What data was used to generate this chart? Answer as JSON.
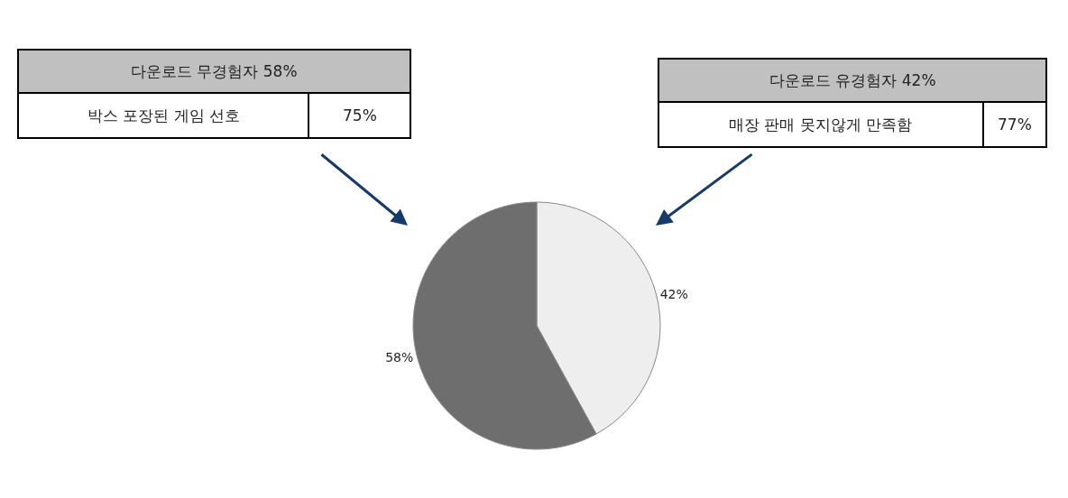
{
  "chart_data": {
    "type": "pie",
    "categories": [
      null,
      null
    ],
    "values": [
      42,
      58
    ],
    "colors": [
      "#eeeeee",
      "#6e6e6e"
    ],
    "value_labels": [
      "42%",
      "58%"
    ],
    "annotations": [
      "다운로드 무경험자 58%",
      "박스 포장된 게임 선호",
      "75%",
      "다운로드 유경험자 42%",
      "매장 판매 못지않게 만족함",
      "77%"
    ]
  }
}
